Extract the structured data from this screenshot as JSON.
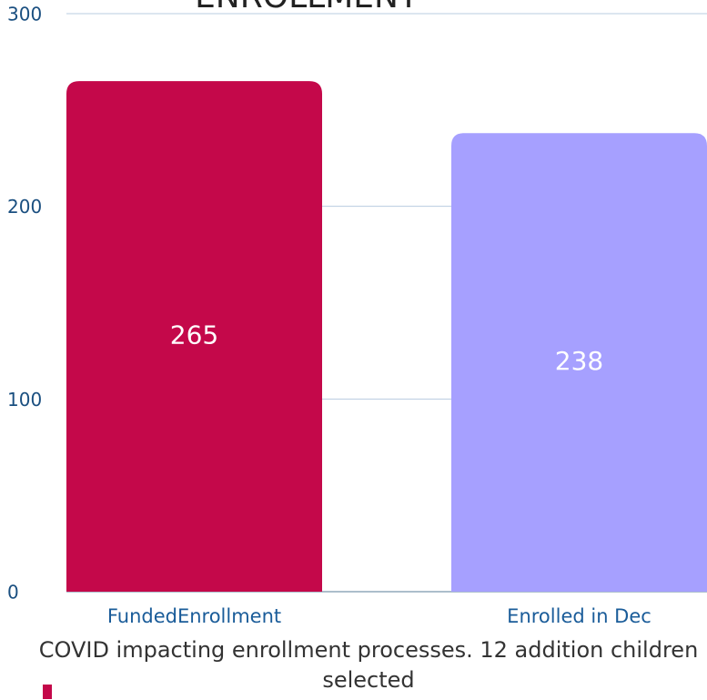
{
  "chart_data": {
    "type": "bar",
    "title": "ENROLLMENT",
    "categories": [
      "FundedEnrollment",
      "Enrolled in Dec"
    ],
    "values": [
      265,
      238
    ],
    "colors": [
      "#c4084a",
      "#a6a0ff"
    ],
    "ylim": [
      0,
      300
    ],
    "yticks": [
      0,
      100,
      200,
      300
    ],
    "grid": true,
    "annotation": "COVID impacting enrollment processes. 12 addition children selected"
  }
}
